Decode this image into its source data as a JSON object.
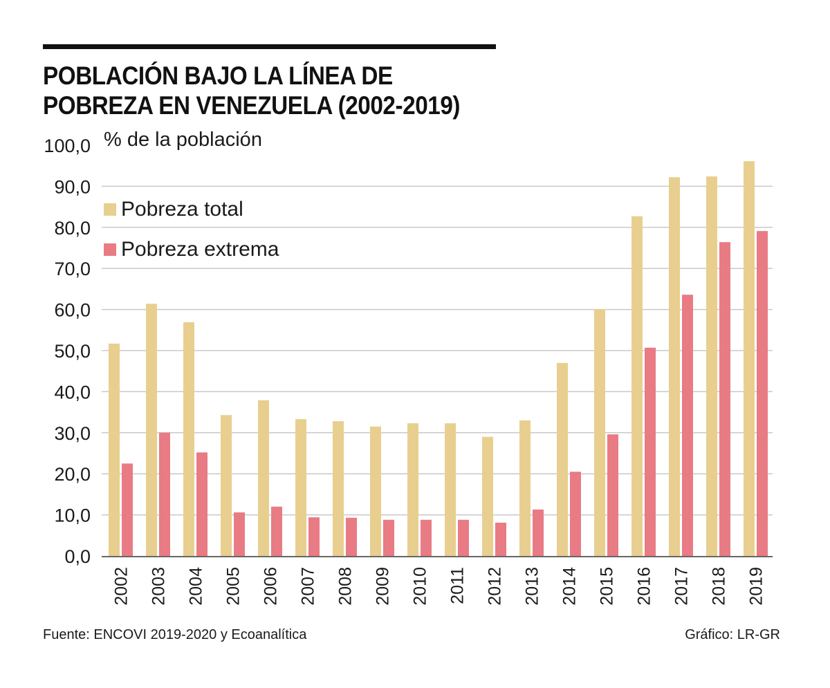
{
  "header": {
    "title_line1": "POBLACIÓN BAJO LA LÍNEA DE",
    "title_line2": "POBREZA EN VENEZUELA (2002-2019)",
    "unit_label": "% de la población"
  },
  "footer": {
    "source": "Fuente: ENCOVI 2019-2020 y Ecoanalítica",
    "credit": "Gráfico: LR-GR"
  },
  "chart_data": {
    "type": "bar",
    "title": "POBLACIÓN BAJO LA LÍNEA DE POBREZA EN VENEZUELA (2002-2019)",
    "xlabel": "",
    "ylabel": "% de la población",
    "ylim": [
      0,
      100
    ],
    "yticks": [
      0,
      10,
      20,
      30,
      40,
      50,
      60,
      70,
      80,
      90,
      100
    ],
    "ytick_labels": [
      "0,0",
      "10,0",
      "20,0",
      "30,0",
      "40,0",
      "50,0",
      "60,0",
      "70,0",
      "80,0",
      "90,0",
      "100,0"
    ],
    "grid": true,
    "legend_position": "top-left",
    "categories": [
      "2002",
      "2003",
      "2004",
      "2005",
      "2006",
      "2007",
      "2008",
      "2009",
      "2010",
      "2011",
      "2012",
      "2013",
      "2014",
      "2015",
      "2016",
      "2017",
      "2018",
      "2019"
    ],
    "series": [
      {
        "name": "Pobreza total",
        "color": "#e8cf8f",
        "values": [
          51.7,
          61.4,
          56.9,
          34.3,
          37.9,
          33.3,
          32.8,
          31.5,
          32.3,
          32.3,
          29.0,
          33.0,
          47.0,
          60.1,
          82.7,
          92.2,
          92.4,
          96.1
        ]
      },
      {
        "name": "Pobreza extrema",
        "color": "#e87b84",
        "values": [
          22.5,
          30.0,
          25.2,
          10.6,
          12.0,
          9.4,
          9.3,
          8.8,
          8.8,
          8.8,
          8.1,
          11.3,
          20.5,
          29.6,
          50.7,
          63.6,
          76.4,
          79.1
        ]
      }
    ]
  }
}
